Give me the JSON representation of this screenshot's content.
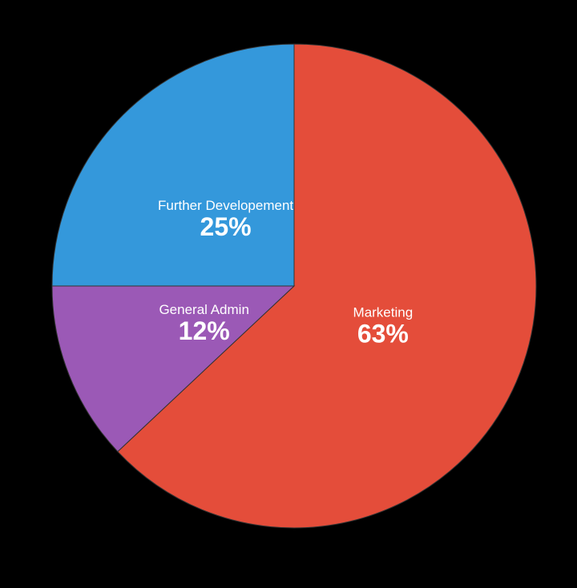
{
  "chart_data": {
    "type": "pie",
    "categories": [
      "Marketing",
      "General Admin",
      "Further Developement"
    ],
    "values": [
      63,
      12,
      25
    ],
    "value_labels": [
      "63%",
      "12%",
      "25%"
    ],
    "colors": [
      "#e44d3a",
      "#9b59b6",
      "#3498db"
    ]
  }
}
